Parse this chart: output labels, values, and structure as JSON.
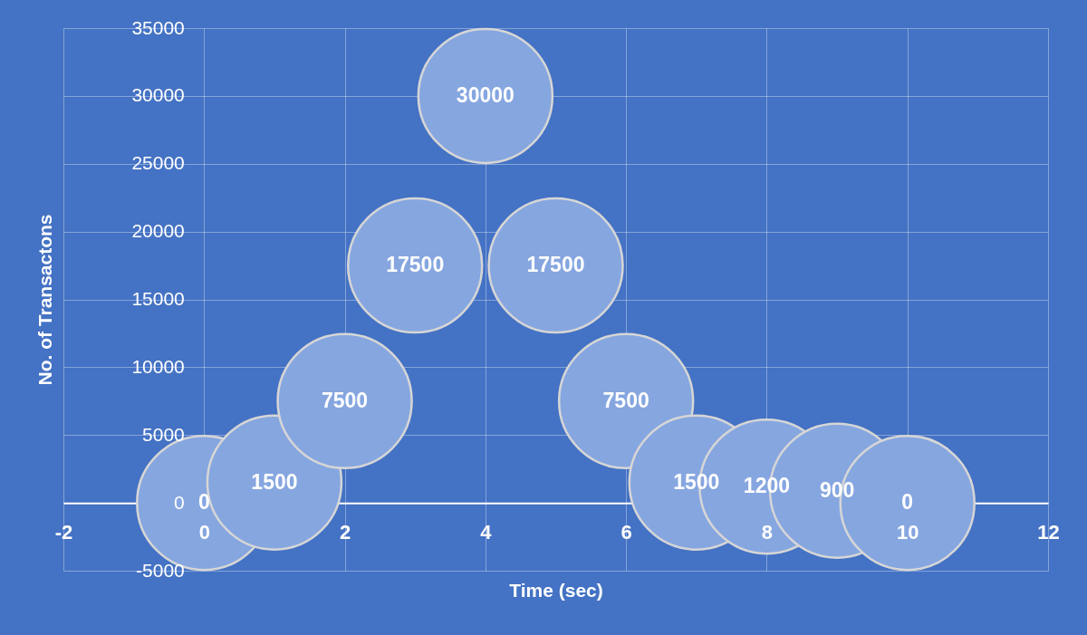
{
  "chart_data": {
    "type": "bubble",
    "xlabel": "Time (sec)",
    "ylabel": "No. of Transactons",
    "x": [
      0,
      1,
      2,
      3,
      4,
      5,
      6,
      7,
      8,
      9,
      10
    ],
    "series": [
      {
        "color": "#86a6e0",
        "values": [
          0,
          1500,
          7500,
          17500,
          30000,
          17500,
          7500,
          1500,
          1200,
          900,
          0
        ],
        "sizes": [
          1,
          1,
          1,
          1,
          1,
          1,
          1,
          1,
          1,
          1,
          1
        ]
      }
    ],
    "xlim": [
      -2,
      12
    ],
    "xticks": [
      -2,
      0,
      2,
      4,
      6,
      8,
      10,
      12
    ],
    "ylim": [
      -5000,
      35000
    ],
    "yticks": [
      -5000,
      0,
      5000,
      10000,
      15000,
      20000,
      25000,
      30000,
      35000
    ],
    "grid": true,
    "data_labels": true
  }
}
